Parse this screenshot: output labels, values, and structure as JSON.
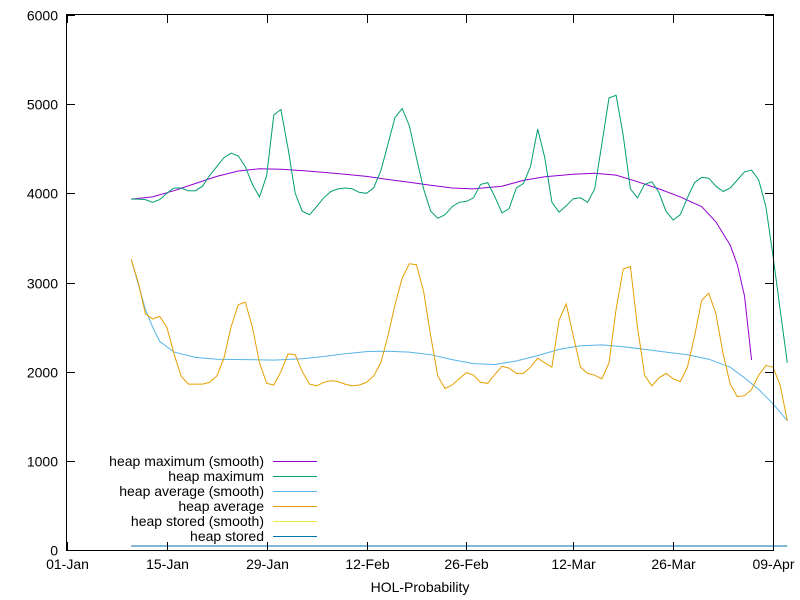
{
  "chart_data": {
    "type": "line",
    "title": "",
    "xlabel": "HOL-Probability",
    "ylabel": "",
    "x_tick_labels": [
      "01-Jan",
      "15-Jan",
      "29-Jan",
      "12-Feb",
      "26-Feb",
      "12-Mar",
      "26-Mar",
      "09-Apr"
    ],
    "x_ticks": [
      "2024-01-01",
      "2024-01-15",
      "2024-01-29",
      "2024-02-12",
      "2024-02-26",
      "2024-03-12",
      "2024-03-26",
      "2024-04-09"
    ],
    "xlim": [
      "2024-01-01",
      "2024-04-09"
    ],
    "y_tick_labels": [
      "0",
      "1000",
      "2000",
      "3000",
      "4000",
      "5000",
      "6000"
    ],
    "y_ticks": [
      0,
      1000,
      2000,
      3000,
      4000,
      5000,
      6000
    ],
    "ylim": [
      0,
      6000
    ],
    "grid": false,
    "legend_position": "bottom-left",
    "series": [
      {
        "name": "heap maximum (smooth)",
        "color": "#9400d3",
        "points": [
          [
            "2024-01-10",
            3935
          ],
          [
            "2024-01-13",
            3960
          ],
          [
            "2024-01-16",
            4030
          ],
          [
            "2024-01-19",
            4110
          ],
          [
            "2024-01-22",
            4190
          ],
          [
            "2024-01-25",
            4250
          ],
          [
            "2024-01-28",
            4275
          ],
          [
            "2024-01-31",
            4270
          ],
          [
            "2024-02-03",
            4255
          ],
          [
            "2024-02-06",
            4235
          ],
          [
            "2024-02-09",
            4215
          ],
          [
            "2024-02-12",
            4190
          ],
          [
            "2024-02-15",
            4155
          ],
          [
            "2024-02-18",
            4125
          ],
          [
            "2024-02-21",
            4090
          ],
          [
            "2024-02-24",
            4060
          ],
          [
            "2024-02-27",
            4050
          ],
          [
            "2024-03-02",
            4080
          ],
          [
            "2024-03-05",
            4145
          ],
          [
            "2024-03-08",
            4185
          ],
          [
            "2024-03-12",
            4215
          ],
          [
            "2024-03-15",
            4225
          ],
          [
            "2024-03-18",
            4205
          ],
          [
            "2024-03-21",
            4130
          ],
          [
            "2024-03-24",
            4050
          ],
          [
            "2024-03-27",
            3960
          ],
          [
            "2024-03-30",
            3850
          ],
          [
            "2024-04-01",
            3680
          ],
          [
            "2024-04-03",
            3420
          ],
          [
            "2024-04-04",
            3200
          ],
          [
            "2024-04-05",
            2850
          ],
          [
            "2024-04-06",
            2130
          ]
        ]
      },
      {
        "name": "heap maximum",
        "color": "#009e73",
        "points": [
          [
            "2024-01-10",
            3935
          ],
          [
            "2024-01-11",
            3935
          ],
          [
            "2024-01-12",
            3930
          ],
          [
            "2024-01-13",
            3900
          ],
          [
            "2024-01-14",
            3930
          ],
          [
            "2024-01-15",
            4000
          ],
          [
            "2024-01-16",
            4060
          ],
          [
            "2024-01-17",
            4060
          ],
          [
            "2024-01-18",
            4030
          ],
          [
            "2024-01-19",
            4030
          ],
          [
            "2024-01-20",
            4080
          ],
          [
            "2024-01-21",
            4200
          ],
          [
            "2024-01-22",
            4300
          ],
          [
            "2024-01-23",
            4400
          ],
          [
            "2024-01-24",
            4450
          ],
          [
            "2024-01-25",
            4420
          ],
          [
            "2024-01-26",
            4300
          ],
          [
            "2024-01-27",
            4100
          ],
          [
            "2024-01-28",
            3960
          ],
          [
            "2024-01-29",
            4200
          ],
          [
            "2024-01-30",
            4880
          ],
          [
            "2024-01-31",
            4940
          ],
          [
            "2024-02-01",
            4500
          ],
          [
            "2024-02-02",
            4000
          ],
          [
            "2024-02-03",
            3800
          ],
          [
            "2024-02-04",
            3760
          ],
          [
            "2024-02-05",
            3850
          ],
          [
            "2024-02-06",
            3950
          ],
          [
            "2024-02-07",
            4020
          ],
          [
            "2024-02-08",
            4050
          ],
          [
            "2024-02-09",
            4060
          ],
          [
            "2024-02-10",
            4050
          ],
          [
            "2024-02-11",
            4010
          ],
          [
            "2024-02-12",
            4000
          ],
          [
            "2024-02-13",
            4060
          ],
          [
            "2024-02-14",
            4250
          ],
          [
            "2024-02-15",
            4550
          ],
          [
            "2024-02-16",
            4850
          ],
          [
            "2024-02-17",
            4950
          ],
          [
            "2024-02-18",
            4760
          ],
          [
            "2024-02-19",
            4400
          ],
          [
            "2024-02-20",
            4050
          ],
          [
            "2024-02-21",
            3800
          ],
          [
            "2024-02-22",
            3720
          ],
          [
            "2024-02-23",
            3760
          ],
          [
            "2024-02-24",
            3850
          ],
          [
            "2024-02-25",
            3900
          ],
          [
            "2024-02-26",
            3910
          ],
          [
            "2024-02-27",
            3950
          ],
          [
            "2024-02-28",
            4100
          ],
          [
            "2024-02-29",
            4120
          ],
          [
            "2024-03-01",
            3960
          ],
          [
            "2024-03-02",
            3780
          ],
          [
            "2024-03-03",
            3830
          ],
          [
            "2024-03-04",
            4060
          ],
          [
            "2024-03-05",
            4110
          ],
          [
            "2024-03-06",
            4300
          ],
          [
            "2024-03-07",
            4720
          ],
          [
            "2024-03-08",
            4400
          ],
          [
            "2024-03-09",
            3900
          ],
          [
            "2024-03-10",
            3790
          ],
          [
            "2024-03-11",
            3860
          ],
          [
            "2024-03-12",
            3940
          ],
          [
            "2024-03-13",
            3950
          ],
          [
            "2024-03-14",
            3900
          ],
          [
            "2024-03-15",
            4050
          ],
          [
            "2024-03-16",
            4550
          ],
          [
            "2024-03-17",
            5070
          ],
          [
            "2024-03-18",
            5100
          ],
          [
            "2024-03-19",
            4650
          ],
          [
            "2024-03-20",
            4050
          ],
          [
            "2024-03-21",
            3950
          ],
          [
            "2024-03-22",
            4100
          ],
          [
            "2024-03-23",
            4130
          ],
          [
            "2024-03-24",
            4010
          ],
          [
            "2024-03-25",
            3800
          ],
          [
            "2024-03-26",
            3700
          ],
          [
            "2024-03-27",
            3760
          ],
          [
            "2024-03-28",
            3950
          ],
          [
            "2024-03-29",
            4120
          ],
          [
            "2024-03-30",
            4180
          ],
          [
            "2024-03-31",
            4170
          ],
          [
            "2024-04-01",
            4080
          ],
          [
            "2024-04-02",
            4020
          ],
          [
            "2024-04-03",
            4060
          ],
          [
            "2024-04-04",
            4150
          ],
          [
            "2024-04-05",
            4240
          ],
          [
            "2024-04-06",
            4260
          ],
          [
            "2024-04-07",
            4150
          ],
          [
            "2024-04-08",
            3850
          ],
          [
            "2024-04-09",
            3300
          ],
          [
            "2024-04-10",
            2700
          ],
          [
            "2024-04-11",
            2100
          ]
        ]
      },
      {
        "name": "heap average (smooth)",
        "color": "#56b4e9",
        "points": [
          [
            "2024-01-10",
            3260
          ],
          [
            "2024-01-11",
            2980
          ],
          [
            "2024-01-12",
            2700
          ],
          [
            "2024-01-13",
            2500
          ],
          [
            "2024-01-14",
            2340
          ],
          [
            "2024-01-16",
            2220
          ],
          [
            "2024-01-19",
            2160
          ],
          [
            "2024-01-22",
            2140
          ],
          [
            "2024-01-26",
            2135
          ],
          [
            "2024-01-30",
            2130
          ],
          [
            "2024-02-03",
            2145
          ],
          [
            "2024-02-06",
            2170
          ],
          [
            "2024-02-09",
            2200
          ],
          [
            "2024-02-12",
            2225
          ],
          [
            "2024-02-15",
            2230
          ],
          [
            "2024-02-18",
            2220
          ],
          [
            "2024-02-21",
            2190
          ],
          [
            "2024-02-24",
            2135
          ],
          [
            "2024-02-27",
            2090
          ],
          [
            "2024-03-01",
            2080
          ],
          [
            "2024-03-04",
            2120
          ],
          [
            "2024-03-07",
            2180
          ],
          [
            "2024-03-10",
            2250
          ],
          [
            "2024-03-13",
            2290
          ],
          [
            "2024-03-16",
            2300
          ],
          [
            "2024-03-19",
            2280
          ],
          [
            "2024-03-22",
            2250
          ],
          [
            "2024-03-25",
            2220
          ],
          [
            "2024-03-28",
            2190
          ],
          [
            "2024-03-31",
            2140
          ],
          [
            "2024-04-03",
            2050
          ],
          [
            "2024-04-05",
            1930
          ],
          [
            "2024-04-07",
            1800
          ],
          [
            "2024-04-09",
            1640
          ],
          [
            "2024-04-11",
            1450
          ]
        ]
      },
      {
        "name": "heap average",
        "color": "#e69f00",
        "points": [
          [
            "2024-01-10",
            3260
          ],
          [
            "2024-01-11",
            3000
          ],
          [
            "2024-01-12",
            2650
          ],
          [
            "2024-01-13",
            2590
          ],
          [
            "2024-01-14",
            2620
          ],
          [
            "2024-01-15",
            2500
          ],
          [
            "2024-01-16",
            2200
          ],
          [
            "2024-01-17",
            1950
          ],
          [
            "2024-01-18",
            1860
          ],
          [
            "2024-01-19",
            1860
          ],
          [
            "2024-01-20",
            1860
          ],
          [
            "2024-01-21",
            1880
          ],
          [
            "2024-01-22",
            1950
          ],
          [
            "2024-01-23",
            2150
          ],
          [
            "2024-01-24",
            2500
          ],
          [
            "2024-01-25",
            2750
          ],
          [
            "2024-01-26",
            2780
          ],
          [
            "2024-01-27",
            2500
          ],
          [
            "2024-01-28",
            2100
          ],
          [
            "2024-01-29",
            1870
          ],
          [
            "2024-01-30",
            1850
          ],
          [
            "2024-01-31",
            2000
          ],
          [
            "2024-02-01",
            2200
          ],
          [
            "2024-02-02",
            2190
          ],
          [
            "2024-02-03",
            2000
          ],
          [
            "2024-02-04",
            1860
          ],
          [
            "2024-02-05",
            1840
          ],
          [
            "2024-02-06",
            1880
          ],
          [
            "2024-02-07",
            1900
          ],
          [
            "2024-02-08",
            1890
          ],
          [
            "2024-02-09",
            1860
          ],
          [
            "2024-02-10",
            1840
          ],
          [
            "2024-02-11",
            1850
          ],
          [
            "2024-02-12",
            1880
          ],
          [
            "2024-02-13",
            1950
          ],
          [
            "2024-02-14",
            2100
          ],
          [
            "2024-02-15",
            2400
          ],
          [
            "2024-02-16",
            2750
          ],
          [
            "2024-02-17",
            3050
          ],
          [
            "2024-02-18",
            3210
          ],
          [
            "2024-02-19",
            3200
          ],
          [
            "2024-02-20",
            2900
          ],
          [
            "2024-02-21",
            2400
          ],
          [
            "2024-02-22",
            1950
          ],
          [
            "2024-02-23",
            1810
          ],
          [
            "2024-02-24",
            1850
          ],
          [
            "2024-02-25",
            1920
          ],
          [
            "2024-02-26",
            1990
          ],
          [
            "2024-02-27",
            1960
          ],
          [
            "2024-02-28",
            1880
          ],
          [
            "2024-02-29",
            1870
          ],
          [
            "2024-03-01",
            1970
          ],
          [
            "2024-03-02",
            2060
          ],
          [
            "2024-03-03",
            2040
          ],
          [
            "2024-03-04",
            1980
          ],
          [
            "2024-03-05",
            1980
          ],
          [
            "2024-03-06",
            2050
          ],
          [
            "2024-03-07",
            2150
          ],
          [
            "2024-03-08",
            2100
          ],
          [
            "2024-03-09",
            2050
          ],
          [
            "2024-03-10",
            2580
          ],
          [
            "2024-03-11",
            2760
          ],
          [
            "2024-03-12",
            2400
          ],
          [
            "2024-03-13",
            2050
          ],
          [
            "2024-03-14",
            1980
          ],
          [
            "2024-03-15",
            1960
          ],
          [
            "2024-03-16",
            1920
          ],
          [
            "2024-03-17",
            2100
          ],
          [
            "2024-03-18",
            2700
          ],
          [
            "2024-03-19",
            3150
          ],
          [
            "2024-03-20",
            3180
          ],
          [
            "2024-03-21",
            2500
          ],
          [
            "2024-03-22",
            1960
          ],
          [
            "2024-03-23",
            1840
          ],
          [
            "2024-03-24",
            1930
          ],
          [
            "2024-03-25",
            1980
          ],
          [
            "2024-03-26",
            1920
          ],
          [
            "2024-03-27",
            1890
          ],
          [
            "2024-03-28",
            2050
          ],
          [
            "2024-03-29",
            2400
          ],
          [
            "2024-03-30",
            2800
          ],
          [
            "2024-03-31",
            2880
          ],
          [
            "2024-04-01",
            2650
          ],
          [
            "2024-04-02",
            2200
          ],
          [
            "2024-04-03",
            1860
          ],
          [
            "2024-04-04",
            1720
          ],
          [
            "2024-04-05",
            1730
          ],
          [
            "2024-04-06",
            1800
          ],
          [
            "2024-04-07",
            1960
          ],
          [
            "2024-04-08",
            2070
          ],
          [
            "2024-04-09",
            2050
          ],
          [
            "2024-04-10",
            1850
          ],
          [
            "2024-04-11",
            1450
          ]
        ]
      },
      {
        "name": "heap stored (smooth)",
        "color": "#f0e442",
        "points": [
          [
            "2024-01-10",
            45
          ],
          [
            "2024-04-11",
            45
          ]
        ]
      },
      {
        "name": "heap stored",
        "color": "#0072b2",
        "points": [
          [
            "2024-01-10",
            45
          ],
          [
            "2024-04-11",
            45
          ]
        ]
      }
    ]
  }
}
